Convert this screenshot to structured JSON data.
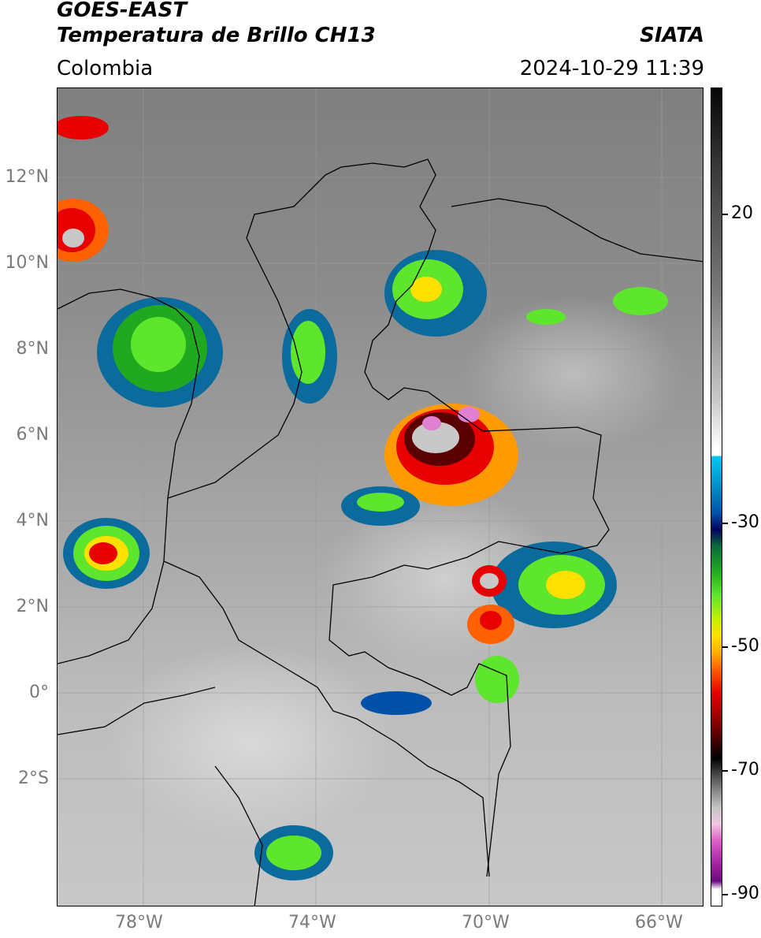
{
  "header": {
    "title_line1": "GOES-EAST",
    "title_line2": "Temperatura de Brillo CH13",
    "agency": "SIATA",
    "region": "Colombia",
    "datetime": "2024-10-29 11:39"
  },
  "axes": {
    "lat_labels": [
      "12°N",
      "10°N",
      "8°N",
      "6°N",
      "4°N",
      "2°N",
      "0°",
      "2°S"
    ],
    "lon_labels": [
      "78°W",
      "74°W",
      "70°W",
      "66°W"
    ]
  },
  "colorbar": {
    "labels": [
      "20",
      "-30",
      "-50",
      "-70",
      "-90"
    ]
  },
  "colors": {
    "cold_cloud_red": "#e80000",
    "convective_green": "#5de62b",
    "anvil_yellow": "#ffe000",
    "boundary_line": "#000000",
    "grid_line": "#9a9a9a"
  }
}
